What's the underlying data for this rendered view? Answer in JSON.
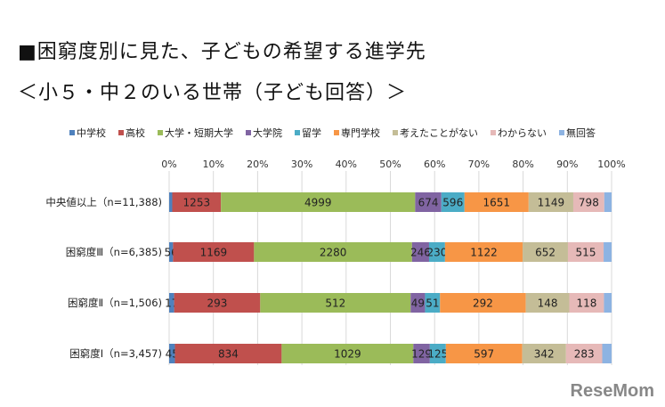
{
  "title": "■困窮度別に見た、子どもの希望する進学先",
  "subtitle": "＜小５・中２のいる世帯（子ども回答）＞",
  "watermark": "ReseMom",
  "chart_data": {
    "type": "bar",
    "orientation": "horizontal",
    "stacked": "percent",
    "xlim": [
      0,
      100
    ],
    "xticks": [
      "0%",
      "10%",
      "20%",
      "30%",
      "40%",
      "50%",
      "60%",
      "70%",
      "80%",
      "90%",
      "100%"
    ],
    "grid": true,
    "legend_position": "top",
    "categories": [
      "中央値以上（n=11,388)",
      "困窮度Ⅲ（n=6,385)",
      "困窮度Ⅱ（n=1,506)",
      "困窮度Ⅰ（n=3,457)"
    ],
    "series": [
      {
        "name": "中学校",
        "color": "#4f81bd",
        "values": [
          80,
          56,
          17,
          45
        ],
        "labels": [
          "",
          "56",
          "17",
          "45"
        ]
      },
      {
        "name": "高校",
        "color": "#c0504d",
        "values": [
          1253,
          1169,
          293,
          834
        ],
        "labels": [
          "1253",
          "1169",
          "293",
          "834"
        ]
      },
      {
        "name": "大学・短期大学",
        "color": "#9bbb59",
        "values": [
          4999,
          2280,
          512,
          1029
        ],
        "labels": [
          "4999",
          "2280",
          "512",
          "1029"
        ]
      },
      {
        "name": "大学院",
        "color": "#8064a2",
        "values": [
          674,
          246,
          49,
          129
        ],
        "labels": [
          "674",
          "246",
          "49",
          "129"
        ]
      },
      {
        "name": "留学",
        "color": "#4bacc6",
        "values": [
          596,
          230,
          51,
          125
        ],
        "labels": [
          "596",
          "230",
          "51",
          "125"
        ]
      },
      {
        "name": "専門学校",
        "color": "#f79646",
        "values": [
          1651,
          1122,
          292,
          597
        ],
        "labels": [
          "1651",
          "1122",
          "292",
          "597"
        ]
      },
      {
        "name": "考えたことがない",
        "color": "#c4bd97",
        "values": [
          1149,
          652,
          148,
          342
        ],
        "labels": [
          "1149",
          "652",
          "148",
          "342"
        ]
      },
      {
        "name": "わからない",
        "color": "#e6b9b8",
        "values": [
          798,
          515,
          118,
          283
        ],
        "labels": [
          "798",
          "515",
          "118",
          "283"
        ]
      },
      {
        "name": "無回答",
        "color": "#8db3e2",
        "values": [
          188,
          115,
          26,
          73
        ],
        "labels": [
          "",
          "",
          "",
          ""
        ]
      }
    ]
  }
}
